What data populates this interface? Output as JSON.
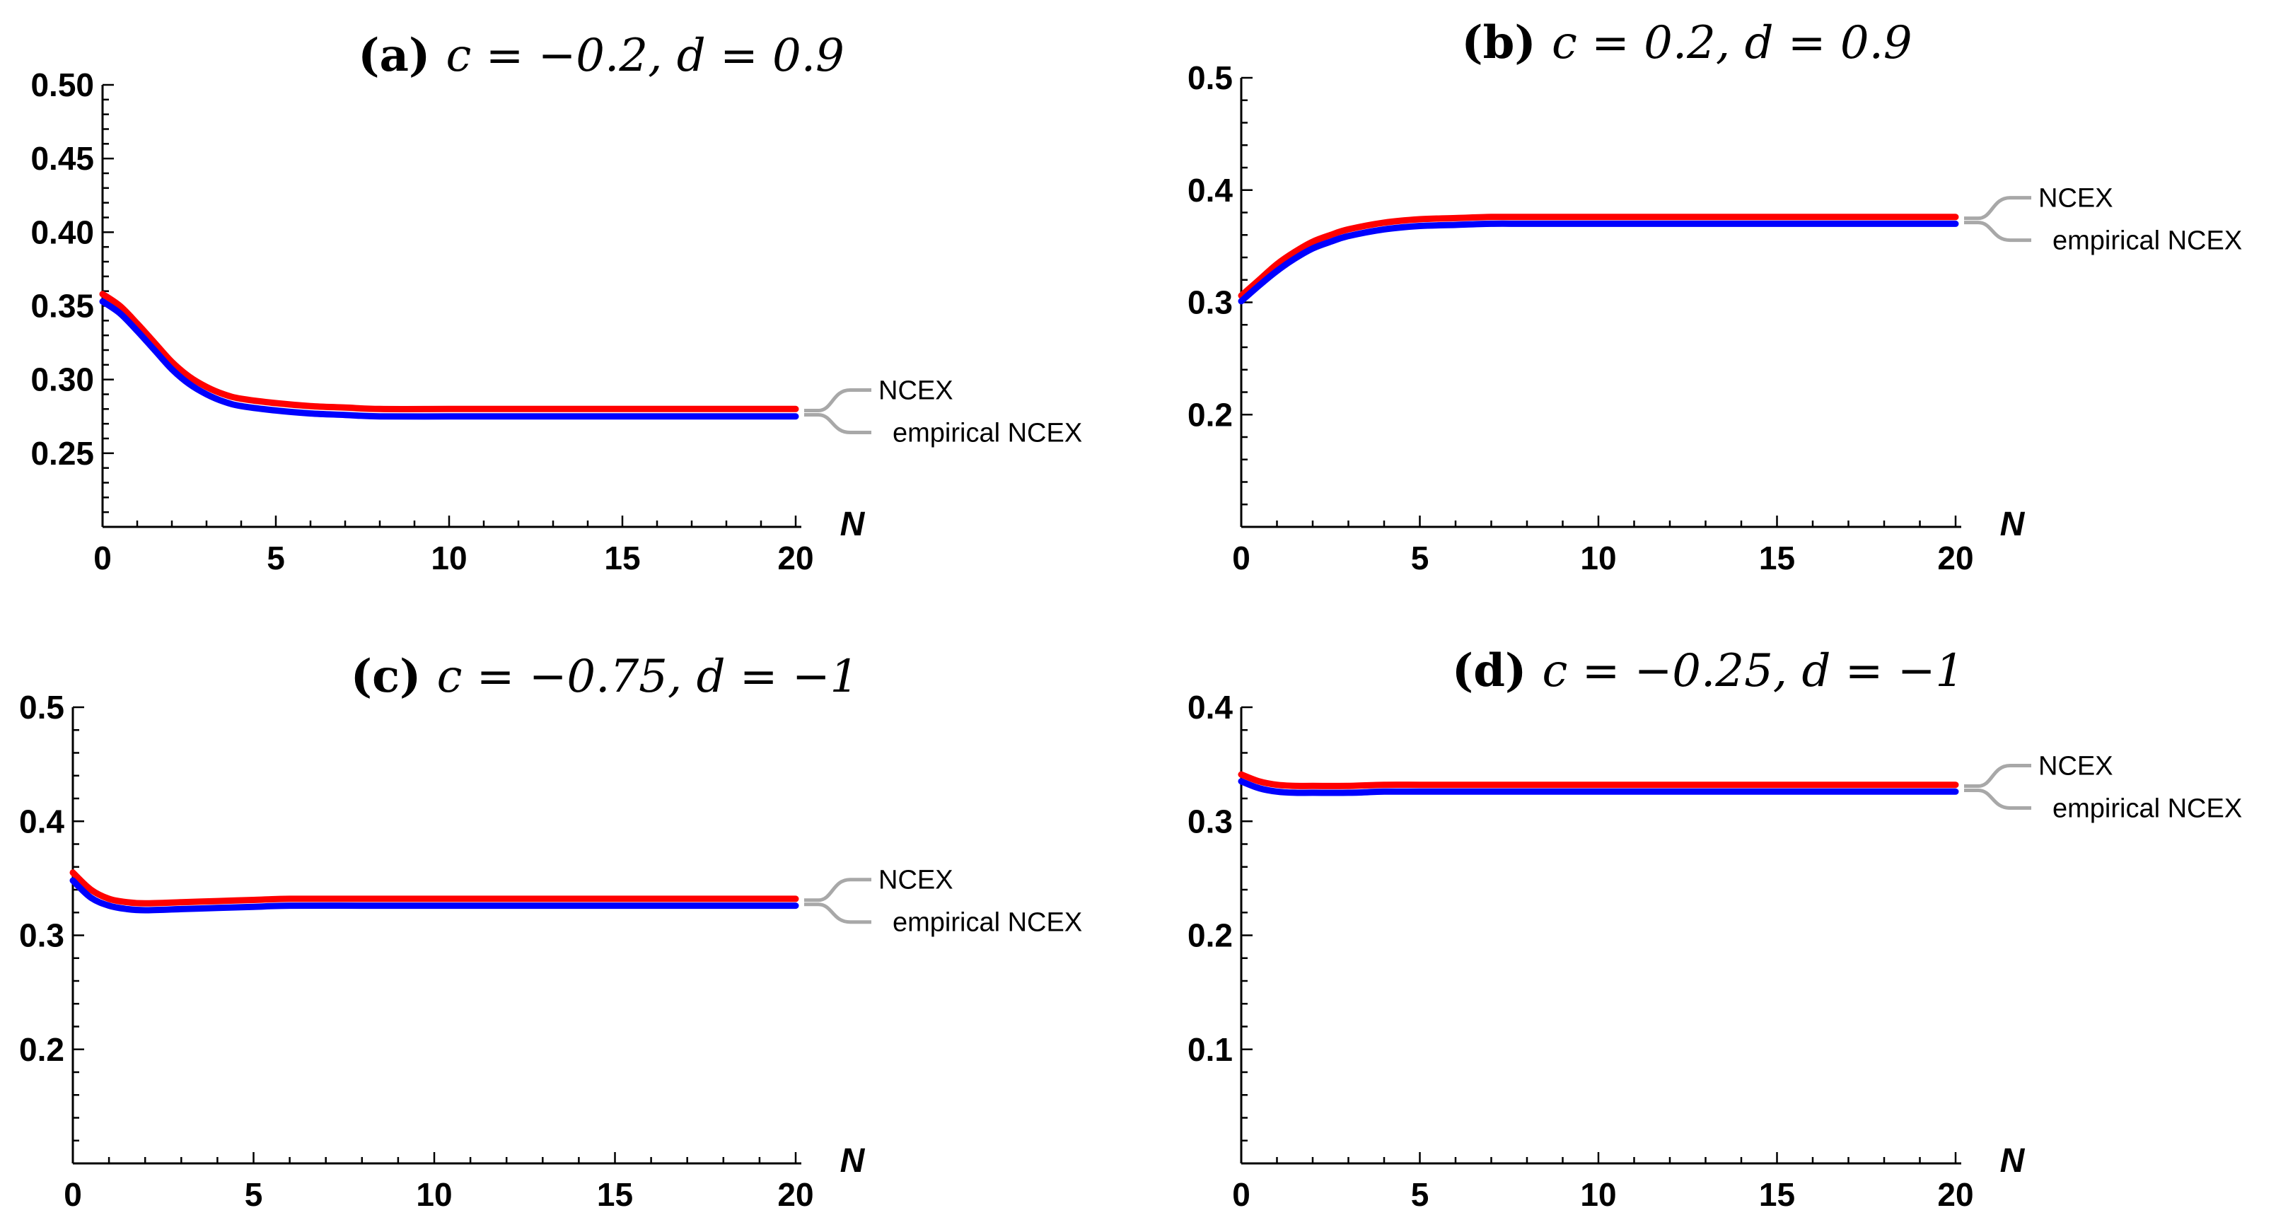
{
  "chart_data": [
    {
      "type": "line",
      "title": {
        "tag": "(a)",
        "math": "c = −0.2, d = 0.9"
      },
      "xlabel": "N",
      "ylabel": "",
      "xlim": [
        0,
        20
      ],
      "ylim": [
        0.2,
        0.5
      ],
      "xticks": [
        "0",
        "5",
        "10",
        "15",
        "20"
      ],
      "yticks": [
        0.25,
        0.3,
        0.35,
        0.4,
        0.45,
        0.5
      ],
      "ytick_labels": [
        "0.25",
        "0.30",
        "0.35",
        "0.40",
        "0.45",
        "0.50"
      ],
      "legend": [
        "NCEX",
        "empirical NCEX"
      ],
      "legend_position": "right",
      "x": [
        0,
        0.5,
        1,
        1.5,
        2,
        2.5,
        3,
        3.5,
        4,
        5,
        6,
        7,
        8,
        10,
        12,
        15,
        20
      ],
      "series": [
        {
          "name": "NCEX",
          "color": "#ff0000",
          "values": [
            0.358,
            0.35,
            0.338,
            0.325,
            0.312,
            0.302,
            0.295,
            0.29,
            0.287,
            0.284,
            0.282,
            0.281,
            0.28,
            0.28,
            0.28,
            0.28,
            0.28
          ]
        },
        {
          "name": "empirical NCEX",
          "color": "#0000ff",
          "values": [
            0.353,
            0.345,
            0.333,
            0.32,
            0.307,
            0.297,
            0.29,
            0.285,
            0.282,
            0.279,
            0.277,
            0.276,
            0.275,
            0.275,
            0.275,
            0.275,
            0.275
          ]
        }
      ]
    },
    {
      "type": "line",
      "title": {
        "tag": "(b)",
        "math": "c = 0.2, d = 0.9"
      },
      "xlabel": "N",
      "ylabel": "",
      "xlim": [
        0,
        20
      ],
      "ylim": [
        0.1,
        0.5
      ],
      "xticks": [
        "0",
        "5",
        "10",
        "15",
        "20"
      ],
      "yticks": [
        0.2,
        0.3,
        0.4,
        0.5
      ],
      "ytick_labels": [
        "0.2",
        "0.3",
        "0.4",
        "0.5"
      ],
      "legend": [
        "NCEX",
        "empirical NCEX"
      ],
      "legend_position": "right",
      "x": [
        0,
        0.5,
        1,
        1.5,
        2,
        2.5,
        3,
        4,
        5,
        6,
        7,
        8,
        10,
        15,
        20
      ],
      "series": [
        {
          "name": "NCEX",
          "color": "#ff0000",
          "values": [
            0.306,
            0.32,
            0.334,
            0.345,
            0.354,
            0.36,
            0.365,
            0.371,
            0.374,
            0.375,
            0.376,
            0.376,
            0.376,
            0.376,
            0.376
          ]
        },
        {
          "name": "empirical NCEX",
          "color": "#0000ff",
          "values": [
            0.301,
            0.315,
            0.328,
            0.339,
            0.348,
            0.354,
            0.359,
            0.365,
            0.368,
            0.369,
            0.37,
            0.37,
            0.37,
            0.37,
            0.37
          ]
        }
      ]
    },
    {
      "type": "line",
      "title": {
        "tag": "(c)",
        "math": "c = −0.75, d = −1"
      },
      "xlabel": "N",
      "ylabel": "",
      "xlim": [
        0,
        20
      ],
      "ylim": [
        0.1,
        0.5
      ],
      "xticks": [
        "0",
        "5",
        "10",
        "15",
        "20"
      ],
      "yticks": [
        0.2,
        0.3,
        0.4,
        0.5
      ],
      "ytick_labels": [
        "0.2",
        "0.3",
        "0.4",
        "0.5"
      ],
      "legend": [
        "NCEX",
        "empirical NCEX"
      ],
      "legend_position": "right",
      "x": [
        0,
        0.5,
        1,
        1.5,
        2,
        3,
        4,
        5,
        6,
        8,
        10,
        15,
        20
      ],
      "series": [
        {
          "name": "NCEX",
          "color": "#ff0000",
          "values": [
            0.355,
            0.34,
            0.332,
            0.329,
            0.328,
            0.329,
            0.33,
            0.331,
            0.332,
            0.332,
            0.332,
            0.332,
            0.332
          ]
        },
        {
          "name": "empirical NCEX",
          "color": "#0000ff",
          "values": [
            0.348,
            0.333,
            0.326,
            0.323,
            0.322,
            0.323,
            0.324,
            0.325,
            0.326,
            0.326,
            0.326,
            0.326,
            0.326
          ]
        }
      ]
    },
    {
      "type": "line",
      "title": {
        "tag": "(d)",
        "math": "c = −0.25, d = −1"
      },
      "xlabel": "N",
      "ylabel": "",
      "xlim": [
        0,
        20
      ],
      "ylim": [
        0.0,
        0.4
      ],
      "xticks": [
        "0",
        "5",
        "10",
        "15",
        "20"
      ],
      "yticks": [
        0.1,
        0.2,
        0.3,
        0.4
      ],
      "ytick_labels": [
        "0.1",
        "0.2",
        "0.3",
        "0.4"
      ],
      "legend": [
        "NCEX",
        "empirical NCEX"
      ],
      "legend_position": "right",
      "x": [
        0,
        0.5,
        1,
        1.5,
        2,
        3,
        4,
        5,
        6,
        8,
        10,
        15,
        20
      ],
      "series": [
        {
          "name": "NCEX",
          "color": "#ff0000",
          "values": [
            0.341,
            0.335,
            0.332,
            0.331,
            0.331,
            0.331,
            0.332,
            0.332,
            0.332,
            0.332,
            0.332,
            0.332,
            0.332
          ]
        },
        {
          "name": "empirical NCEX",
          "color": "#0000ff",
          "values": [
            0.335,
            0.329,
            0.326,
            0.325,
            0.325,
            0.325,
            0.326,
            0.326,
            0.326,
            0.326,
            0.326,
            0.326,
            0.326
          ]
        }
      ]
    }
  ]
}
